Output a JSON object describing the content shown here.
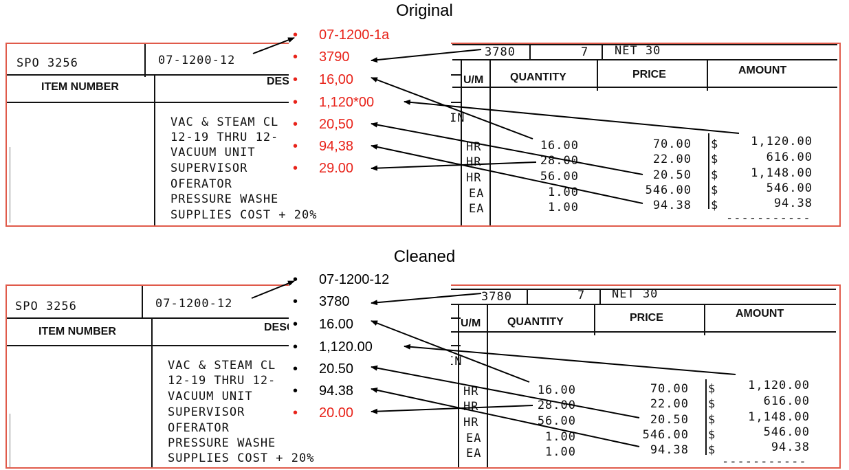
{
  "panels": [
    {
      "title": "Original",
      "doc": {
        "ref": "SPO 3256",
        "job": "07-1200-12",
        "item_header": "ITEM NUMBER",
        "desc_header": "DESC",
        "top_num": "3780",
        "top_qty": "7",
        "terms": "NET 30",
        "um_header": "U/M",
        "qty_header": "QUANTITY",
        "price_header": "PRICE",
        "amount_header": "AMOUNT",
        "in_mark": "IN",
        "desc_lines": [
          "VAC & STEAM CL",
          "12-19 THRU 12-",
          "VACUUM UNIT",
          "SUPERVISOR",
          "OFERATOR",
          "PRESSURE WASHE",
          "SUPPLIES COST + 20%"
        ],
        "rows": [
          {
            "um": "HR",
            "qty": "16.00",
            "price": "70.00",
            "amount": "1,120.00"
          },
          {
            "um": "HR",
            "qty": "28.00",
            "price": "22.00",
            "amount": "616.00"
          },
          {
            "um": "HR",
            "qty": "56.00",
            "price": "20.50",
            "amount": "1,148.00"
          },
          {
            "um": "EA",
            "qty": "1.00",
            "price": "546.00",
            "amount": "546.00"
          },
          {
            "um": "EA",
            "qty": "1.00",
            "price": "94.38",
            "amount": "94.38"
          }
        ],
        "dollar": "$"
      },
      "bullets": [
        {
          "text": "07-1200-1a",
          "color": "#e8231a"
        },
        {
          "text": "3790",
          "color": "#e8231a"
        },
        {
          "text": "16,00",
          "color": "#e8231a"
        },
        {
          "text": "1,120*00",
          "color": "#e8231a"
        },
        {
          "text": "20,50",
          "color": "#e8231a"
        },
        {
          "text": "94,38",
          "color": "#e8231a"
        },
        {
          "text": "29.00",
          "color": "#e8231a"
        }
      ]
    },
    {
      "title": "Cleaned",
      "doc": {
        "ref": "SPO 3256",
        "job": "07-1200-12",
        "item_header": "ITEM NUMBER",
        "desc_header": "DESC",
        "top_num": "3780",
        "top_qty": "7",
        "terms": "NET 30",
        "um_header": "U/M",
        "qty_header": "QUANTITY",
        "price_header": "PRICE",
        "amount_header": "AMOUNT",
        "in_mark": "IN",
        "desc_lines": [
          "VAC & STEAM CL",
          "12-19 THRU 12-",
          "VACUUM UNIT",
          "SUPERVISOR",
          "OFERATOR",
          "PRESSURE WASHE",
          "SUPPLIES COST + 20%"
        ],
        "rows": [
          {
            "um": "HR",
            "qty": "16.00",
            "price": "70.00",
            "amount": "1,120.00"
          },
          {
            "um": "HR",
            "qty": "28.00",
            "price": "22.00",
            "amount": "616.00"
          },
          {
            "um": "HR",
            "qty": "56.00",
            "price": "20.50",
            "amount": "1,148.00"
          },
          {
            "um": "EA",
            "qty": "1.00",
            "price": "546.00",
            "amount": "546.00"
          },
          {
            "um": "EA",
            "qty": "1.00",
            "price": "94.38",
            "amount": "94.38"
          }
        ],
        "dollar": "$"
      },
      "bullets": [
        {
          "text": "07-1200-12",
          "color": "#000000"
        },
        {
          "text": "3780",
          "color": "#000000"
        },
        {
          "text": "16.00",
          "color": "#000000"
        },
        {
          "text": "1,120.00",
          "color": "#000000"
        },
        {
          "text": "20.50",
          "color": "#000000"
        },
        {
          "text": "94.38",
          "color": "#000000"
        },
        {
          "text": "20.00",
          "color": "#e8231a"
        }
      ]
    }
  ]
}
